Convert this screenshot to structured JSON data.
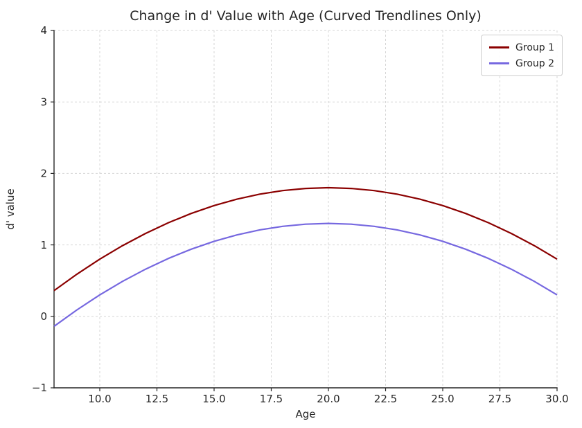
{
  "figure": {
    "background": "#ffffff",
    "text_color": "#262626",
    "axis_color": "#262626",
    "grid_color": "#d6d6d6",
    "legend_border_color": "#cccccc"
  },
  "chart_data": {
    "type": "line",
    "title": "Change in d' Value with Age (Curved Trendlines Only)",
    "xlabel": "Age",
    "ylabel": "d' value",
    "xlim": [
      8,
      30
    ],
    "ylim": [
      -1,
      4
    ],
    "xticks": [
      10,
      12.5,
      15,
      17.5,
      20,
      22.5,
      25,
      27.5,
      30
    ],
    "xtick_labels": [
      "10.0",
      "12.5",
      "15.0",
      "17.5",
      "20.0",
      "22.5",
      "25.0",
      "27.5",
      "30.0"
    ],
    "yticks": [
      -1,
      0,
      1,
      2,
      3,
      4
    ],
    "ytick_labels": [
      "−1",
      "0",
      "1",
      "2",
      "3",
      "4"
    ],
    "grid": true,
    "grid_style": "dashed",
    "legend_position": "upper right",
    "x": [
      8,
      9,
      10,
      11,
      12,
      13,
      14,
      15,
      16,
      17,
      18,
      19,
      20,
      21,
      22,
      23,
      24,
      25,
      26,
      27,
      28,
      29,
      30
    ],
    "series": [
      {
        "name": "Group 1",
        "color": "#8B0000",
        "values": [
          0.36,
          0.59,
          0.8,
          0.99,
          1.16,
          1.31,
          1.44,
          1.55,
          1.64,
          1.71,
          1.76,
          1.79,
          1.8,
          1.79,
          1.76,
          1.71,
          1.64,
          1.55,
          1.44,
          1.31,
          1.16,
          0.99,
          0.8
        ]
      },
      {
        "name": "Group 2",
        "color": "#7668E0",
        "values": [
          -0.14,
          0.09,
          0.3,
          0.49,
          0.66,
          0.81,
          0.94,
          1.05,
          1.14,
          1.21,
          1.26,
          1.29,
          1.3,
          1.29,
          1.26,
          1.21,
          1.14,
          1.05,
          0.94,
          0.81,
          0.66,
          0.49,
          0.3
        ]
      }
    ]
  }
}
